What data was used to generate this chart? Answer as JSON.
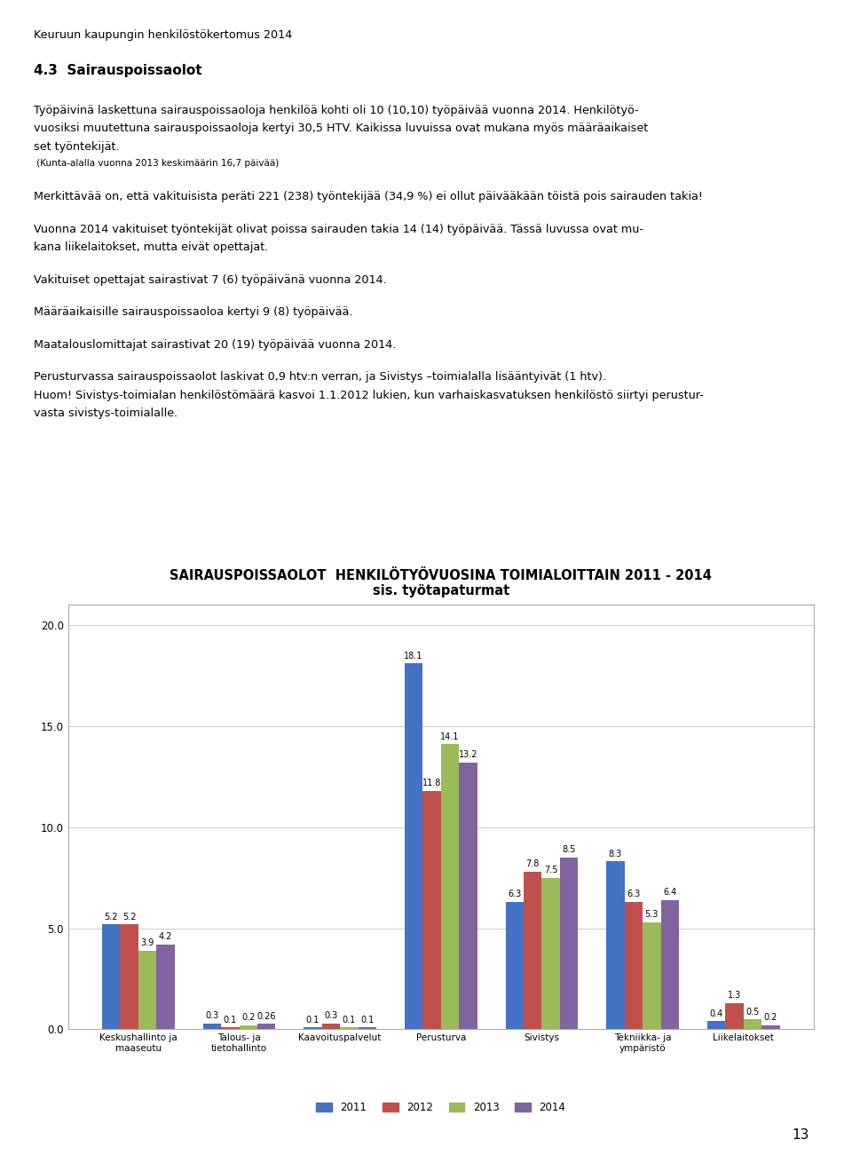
{
  "title_line1": "SAIRAUSPOISSAOLOT  HENKILÖTYÖVUOSINA TOIMIALOITTAIN 2011 - 2014",
  "title_line2": "sis. työtapaturmat",
  "categories": [
    "Keskushallinto ja\nmaaseutu",
    "Talous- ja\ntietohallinto",
    "Kaavoituspalvelut",
    "Perusturva",
    "Sivistys",
    "Tekniikka- ja\nympäristö",
    "Liikelaitokset"
  ],
  "series": {
    "2011": [
      5.2,
      0.3,
      0.1,
      18.1,
      6.3,
      8.3,
      0.4
    ],
    "2012": [
      5.2,
      0.1,
      0.3,
      11.8,
      7.8,
      6.3,
      1.3
    ],
    "2013": [
      3.9,
      0.2,
      0.1,
      14.1,
      7.5,
      5.3,
      0.5
    ],
    "2014": [
      4.2,
      0.26,
      0.1,
      13.2,
      8.5,
      6.4,
      0.2
    ]
  },
  "value_labels": {
    "2011": [
      "5.2",
      "0.3",
      "0.1",
      "18.1",
      "6.3",
      "8.3",
      "0.4"
    ],
    "2012": [
      "5.2",
      "0.1",
      "0.3",
      "11.8",
      "7.8",
      "6.3",
      "1.3"
    ],
    "2013": [
      "3.9",
      "0.2",
      "0.1",
      "14.1",
      "7.5",
      "5.3",
      "0.5"
    ],
    "2014": [
      "4.2",
      "0.26",
      "0.1",
      "13.2",
      "8.5",
      "6.4",
      "0.2"
    ]
  },
  "colors": {
    "2011": "#4472C4",
    "2012": "#C0504D",
    "2013": "#9BBB59",
    "2014": "#8064A2"
  },
  "ylim": [
    0,
    21
  ],
  "yticks": [
    0.0,
    5.0,
    10.0,
    15.0,
    20.0
  ],
  "bar_width": 0.18,
  "legend_labels": [
    "2011",
    "2012",
    "2013",
    "2014"
  ],
  "figure_bg": "#ffffff",
  "font_size_title1": 10.5,
  "font_size_title2": 9.5,
  "font_size_labels": 7.5,
  "font_size_ticks": 8.5,
  "font_size_values": 7.0,
  "page_header": "Keuruun kaupungin henkilöstökertomus 2014",
  "section_title": "4.3  Sairauspoissaolot",
  "para1": "Työpäivinä laskettuna sairauspoissaoloja henkilöä kohti oli 10 (10,10) työpäivää vuonna 2014. Henkilötyö-\nvuosiksi muutettuna sairauspoissaoloja kertyi 30,5 HTV. Kaikissa luvuissa ovat mukana myös määräaikaiset\nset työntekijät.",
  "para1_small": " (Kunta-alalla vuonna 2013 keskimäärin 16,7 päivää)",
  "para2": "Merkittävää on, että vakituisista peräti 221 (238) työntekijää (34,9 %) ei ollut päivääkään töistä pois sairauden takia!",
  "para3": "Vuonna 2014 vakituiset työntekijät olivat poissa sairauden takia 14 (14) työpäivää. Tässä luvussa ovat mu-\nkana liikelaitokset, mutta eivät opettajat.",
  "para4": "Vakituiset opettajat sairastivat 7 (6) työpäivänä vuonna 2014.",
  "para5": "Määräaikaisille sairauspoissaoloa kertyi 9 (8) työpäivää.",
  "para6": "Maatalouslomittajat sairastivat 20 (19) työpäivää vuonna 2014.",
  "para7": "Perusturvassa sairauspoissaolot laskivat 0,9 htv:n verran, ja Sivistys –toimialalla lisääntyivät (1 htv).\nHuom! Sivistys-toimialan henkilöstömäärä kasvoi 1.1.2012 lukien, kun varhaiskasvatuksen henkilöstö siirtyi perustur-\nvasta sivistys-toimialalle.",
  "page_number": "13"
}
